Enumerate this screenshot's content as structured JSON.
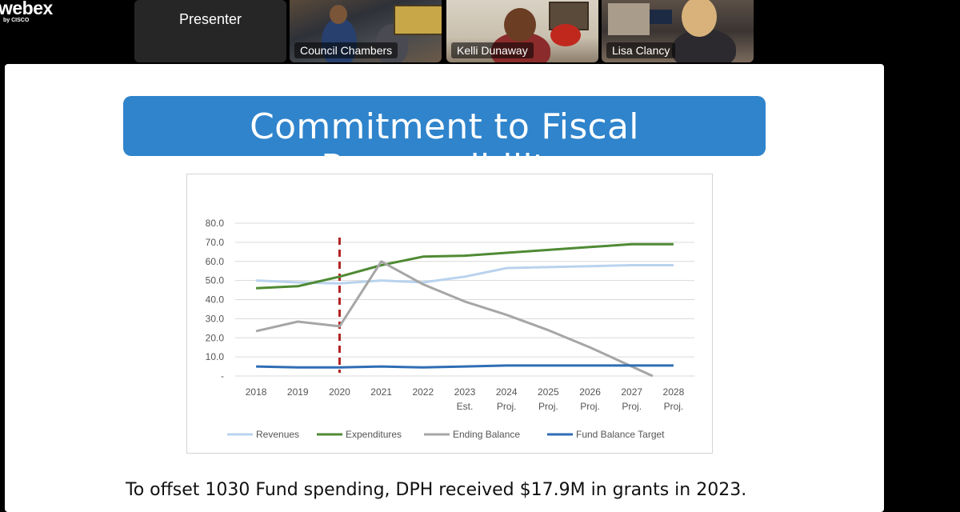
{
  "app": {
    "logo_text": "webex",
    "logo_sub": "by CISCO"
  },
  "participants": [
    {
      "name": "Presenter"
    },
    {
      "name": "Council Chambers"
    },
    {
      "name": "Kelli Dunaway"
    },
    {
      "name": "Lisa Clancy"
    }
  ],
  "slide": {
    "title": "Commitment to Fiscal Responsibility",
    "caption": "To offset 1030 Fund spending, DPH received $17.9M in grants in 2023."
  },
  "chart_data": {
    "type": "line",
    "categories": [
      "2018",
      "2019",
      "2020",
      "2021",
      "2022",
      "2023 Est.",
      "2024 Proj.",
      "2025 Proj.",
      "2026 Proj.",
      "2027 Proj.",
      "2028 Proj."
    ],
    "category_lines": [
      [
        "2018"
      ],
      [
        "2019"
      ],
      [
        "2020"
      ],
      [
        "2021"
      ],
      [
        "2022"
      ],
      [
        "2023",
        "Est."
      ],
      [
        "2024",
        "Proj."
      ],
      [
        "2025",
        "Proj."
      ],
      [
        "2026",
        "Proj."
      ],
      [
        "2027",
        "Proj."
      ],
      [
        "2028",
        "Proj."
      ]
    ],
    "ylim": [
      0,
      80
    ],
    "yticks": [
      0,
      10,
      20,
      30,
      40,
      50,
      60,
      70,
      80
    ],
    "ytick_labels": [
      "-",
      "10.0",
      "20.0",
      "30.0",
      "40.0",
      "50.0",
      "60.0",
      "70.0",
      "80.0"
    ],
    "grid": true,
    "legend_position": "bottom",
    "marker_line_category": "2020",
    "marker_line_color": "#b22222",
    "series": [
      {
        "name": "Revenues",
        "color": "#b9d3ee",
        "values": [
          50,
          49,
          48.5,
          50,
          49,
          52,
          56.5,
          57,
          57.5,
          58,
          58
        ]
      },
      {
        "name": "Expenditures",
        "color": "#4f8a34",
        "values": [
          46,
          47,
          52,
          58,
          62.5,
          63,
          64.5,
          66,
          67.5,
          69,
          69
        ]
      },
      {
        "name": "Ending Balance",
        "color": "#a6a6a6",
        "values": [
          23.5,
          28.5,
          26,
          60,
          48,
          39,
          32,
          24,
          15,
          5,
          -5
        ]
      },
      {
        "name": "Fund Balance Target",
        "color": "#2e6db4",
        "values": [
          5,
          4.5,
          4.5,
          5,
          4.5,
          5,
          5.5,
          5.5,
          5.5,
          5.5,
          5.5
        ]
      }
    ]
  }
}
